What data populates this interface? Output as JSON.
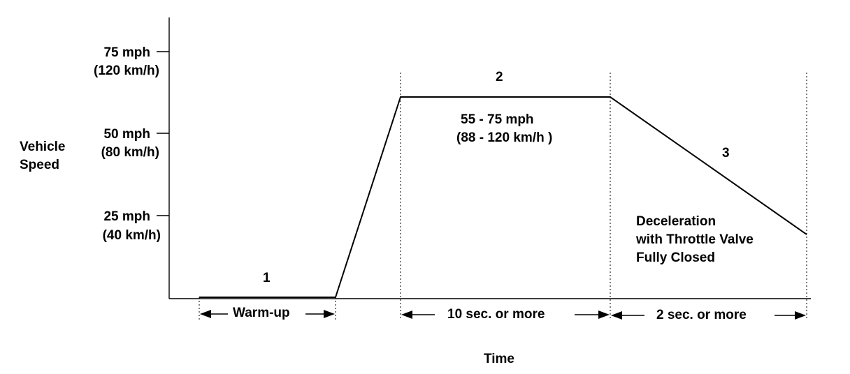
{
  "y_axis_title": [
    "Vehicle",
    "Speed"
  ],
  "x_axis_title": "Time",
  "y_ticks": [
    {
      "speed": "75 mph",
      "metric": "(120 km/h)"
    },
    {
      "speed": "50 mph",
      "metric": "(80 km/h)"
    },
    {
      "speed": "25 mph",
      "metric": "(40 km/h)"
    }
  ],
  "phases": [
    {
      "number": "1",
      "duration": "Warm-up"
    },
    {
      "number": "2",
      "speed": "55 - 75 mph",
      "speed_metric": "(88 - 120 km/h )",
      "duration": "10 sec. or more"
    },
    {
      "number": "3",
      "note": [
        "Deceleration",
        "with Throttle Valve",
        "Fully Closed"
      ],
      "duration": "2 sec. or more"
    }
  ]
}
